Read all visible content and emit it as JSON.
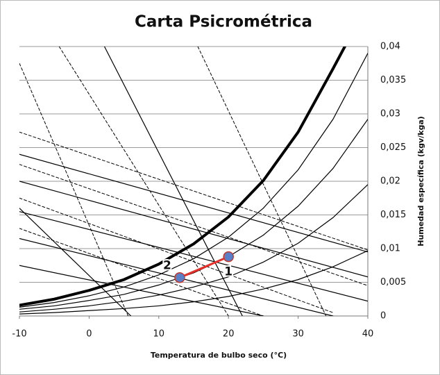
{
  "chart_data": {
    "type": "line",
    "title": "Carta Psicrométrica",
    "x_label": "Temperatura de bulbo seco (°C)",
    "y_label": "Humedad específica (kgv/kga)",
    "xlim": [
      -10,
      40
    ],
    "xticks": [
      -10,
      0,
      10,
      20,
      30,
      40
    ],
    "ylim": [
      0,
      0.04
    ],
    "yticks": [
      0,
      {
        "value": 0.005,
        "label": "0,005"
      },
      {
        "value": 0.01,
        "label": "0,01"
      },
      {
        "value": 0.015,
        "label": "0,015"
      },
      {
        "value": 0.02,
        "label": "0,02"
      },
      {
        "value": 0.025,
        "label": "0,025"
      },
      {
        "value": 0.03,
        "label": "0,03"
      },
      {
        "value": 0.035,
        "label": "0,035"
      },
      {
        "value": 0.04,
        "label": "0,04"
      }
    ],
    "grid": true,
    "series": [
      {
        "x": [
          -10,
          -5,
          0,
          5,
          10,
          15,
          20,
          25,
          30,
          35,
          36.7
        ],
        "values": [
          0.0016,
          0.0025,
          0.0038,
          0.0054,
          0.0077,
          0.0107,
          0.0147,
          0.0201,
          0.0273,
          0.0367,
          0.04
        ],
        "color": "#000000",
        "width": 4,
        "dash": false
      },
      {
        "x": [
          -10,
          -5,
          0,
          5,
          10,
          15,
          20,
          25,
          30,
          35,
          40
        ],
        "values": [
          0.0013,
          0.002,
          0.003,
          0.0043,
          0.0061,
          0.0085,
          0.0117,
          0.016,
          0.0217,
          0.0292,
          0.039
        ],
        "color": "#000000",
        "width": 1.2,
        "dash": false
      },
      {
        "x": [
          -10,
          -5,
          0,
          5,
          10,
          15,
          20,
          25,
          30,
          35,
          40
        ],
        "values": [
          0.001,
          0.0015,
          0.0023,
          0.0032,
          0.0046,
          0.0064,
          0.0088,
          0.012,
          0.0163,
          0.0219,
          0.0292
        ],
        "color": "#000000",
        "width": 1.2,
        "dash": false
      },
      {
        "x": [
          -10,
          -5,
          0,
          5,
          10,
          15,
          20,
          25,
          30,
          35,
          40
        ],
        "values": [
          0.0006,
          0.001,
          0.0015,
          0.0022,
          0.0031,
          0.0043,
          0.0058,
          0.008,
          0.0108,
          0.0146,
          0.0195
        ],
        "color": "#000000",
        "width": 1.2,
        "dash": false
      },
      {
        "x": [
          -10,
          -5,
          0,
          5,
          10,
          15,
          20,
          25,
          30,
          35,
          40
        ],
        "values": [
          0.0003,
          0.0005,
          0.0008,
          0.0011,
          0.0015,
          0.0021,
          0.0029,
          0.004,
          0.0054,
          0.0073,
          0.0097
        ],
        "color": "#000000",
        "width": 1.2,
        "dash": false
      },
      {
        "x": [
          -10,
          40
        ],
        "values": [
          0.024,
          0.0095
        ],
        "color": "#000000",
        "width": 1.2,
        "dash": false
      },
      {
        "x": [
          -10,
          40
        ],
        "values": [
          0.02,
          0.0058
        ],
        "color": "#000000",
        "width": 1.2,
        "dash": false
      },
      {
        "x": [
          -10,
          40
        ],
        "values": [
          0.0155,
          0.0022
        ],
        "color": "#000000",
        "width": 1.2,
        "dash": false
      },
      {
        "x": [
          -10,
          35
        ],
        "values": [
          0.0115,
          0
        ],
        "color": "#000000",
        "width": 1.2,
        "dash": false
      },
      {
        "x": [
          -10,
          25
        ],
        "values": [
          0.0075,
          0
        ],
        "color": "#000000",
        "width": 1.2,
        "dash": false
      },
      {
        "x": [
          -10,
          40
        ],
        "values": [
          0.0273,
          0.0098
        ],
        "color": "#000000",
        "width": 1,
        "dash": true
      },
      {
        "x": [
          -10,
          40
        ],
        "values": [
          0.0225,
          0.0045
        ],
        "color": "#000000",
        "width": 1,
        "dash": true
      },
      {
        "x": [
          -10,
          35
        ],
        "values": [
          0.0175,
          0.0005
        ],
        "color": "#000000",
        "width": 1,
        "dash": true
      },
      {
        "x": [
          -10,
          25
        ],
        "values": [
          0.013,
          0
        ],
        "color": "#000000",
        "width": 1,
        "dash": true
      },
      {
        "x": [
          -10,
          5.6
        ],
        "values": [
          0.0375,
          0
        ],
        "color": "#000000",
        "width": 1,
        "dash": true
      },
      {
        "x": [
          -4.3,
          20
        ],
        "values": [
          0.04,
          0
        ],
        "color": "#000000",
        "width": 1,
        "dash": true
      },
      {
        "x": [
          15.6,
          34
        ],
        "values": [
          0.04,
          0
        ],
        "color": "#000000",
        "width": 1,
        "dash": true
      },
      {
        "x": [
          2.2,
          22
        ],
        "values": [
          0.04,
          0
        ],
        "color": "#000000",
        "width": 1.2,
        "dash": false
      },
      {
        "x": [
          -10,
          6
        ],
        "values": [
          0.016,
          0
        ],
        "color": "#000000",
        "width": 1.2,
        "dash": false
      },
      {
        "x": [
          13,
          20
        ],
        "values": [
          0.0057,
          0.0088
        ],
        "color": "#e8302a",
        "width": 3,
        "dash": false
      }
    ],
    "points": [
      {
        "label": "1",
        "x": 20,
        "y": 0.0088,
        "color": "#5b7fc7"
      },
      {
        "label": "2",
        "x": 13,
        "y": 0.0057,
        "color": "#5b7fc7"
      }
    ]
  }
}
